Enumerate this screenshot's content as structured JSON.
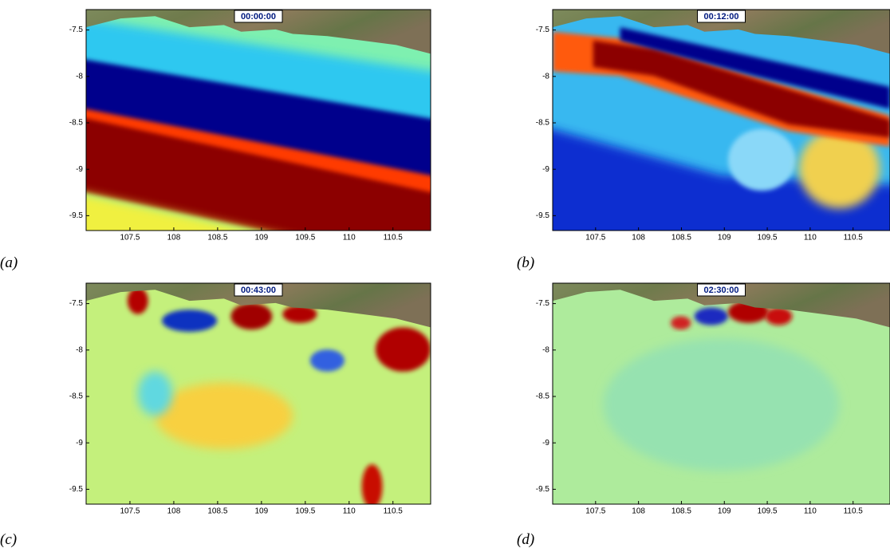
{
  "panels": [
    {
      "label": "(a)",
      "time": "00:00:00"
    },
    {
      "label": "(b)",
      "time": "00:12:00"
    },
    {
      "label": "(c)",
      "time": "00:43:00"
    },
    {
      "label": "(d)",
      "time": "02:30:00"
    }
  ],
  "xlim": [
    107.0,
    110.93
  ],
  "ylim": [
    -9.66,
    -7.28
  ],
  "xticks": [
    107.5,
    108,
    108.5,
    109,
    109.5,
    110,
    110.5
  ],
  "yticks": [
    -7.5,
    -8,
    -8.5,
    -9,
    -9.5
  ]
}
